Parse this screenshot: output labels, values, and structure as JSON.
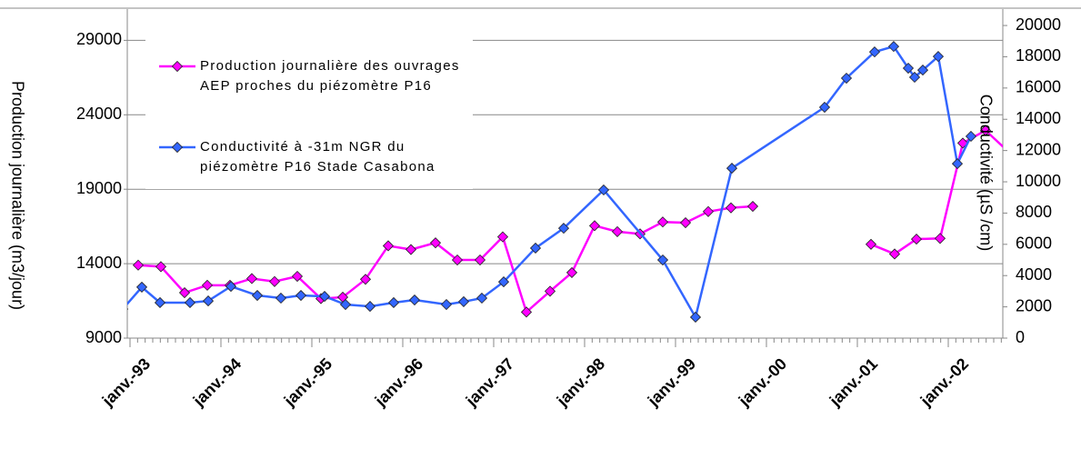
{
  "chart_data": {
    "type": "line",
    "y_label": "Production journalière (m3/jour)",
    "y2_label": "Conductivité (µS /cm)",
    "xlim": [
      1992.97,
      2002.6
    ],
    "xticks": [
      {
        "value": 1993,
        "label": "janv.-93"
      },
      {
        "value": 1994,
        "label": "janv.-94"
      },
      {
        "value": 1995,
        "label": "janv.-95"
      },
      {
        "value": 1996,
        "label": "janv.-96"
      },
      {
        "value": 1997,
        "label": "janv.-97"
      },
      {
        "value": 1998,
        "label": "janv.-98"
      },
      {
        "value": 1999,
        "label": "janv.-99"
      },
      {
        "value": 2000,
        "label": "janv.-00"
      },
      {
        "value": 2001,
        "label": "janv.-01"
      },
      {
        "value": 2002,
        "label": "janv.-02"
      }
    ],
    "ylim": [
      9000,
      31100
    ],
    "yticks": [
      9000,
      14000,
      19000,
      24000,
      29000
    ],
    "y2lim": [
      0,
      21050
    ],
    "y2ticks": [
      0,
      2000,
      4000,
      6000,
      8000,
      10000,
      12000,
      14000,
      16000,
      18000,
      20000
    ],
    "grid": true,
    "legend": "upper left",
    "series": [
      {
        "name": "Production journalière des ouvrages AEP proches du piézomètre P16",
        "color": "#ff00ff",
        "x": [
          1993.09,
          1993.34,
          1993.6,
          1993.85,
          1994.1,
          1994.34,
          1994.59,
          1994.84,
          1995.1,
          1995.34,
          1995.59,
          1995.84,
          1996.09,
          1996.36,
          1996.6,
          1996.85,
          1997.1,
          1997.36,
          1997.62,
          1997.86,
          1998.11,
          1998.36,
          1998.61,
          1998.86,
          1999.11,
          1999.36,
          1999.61,
          1999.85,
          2000.5,
          2001.15,
          2001.41,
          2001.65,
          2001.91,
          2002.16,
          2002.41,
          2002.7
        ],
        "values": [
          13900,
          13800,
          12050,
          12550,
          12550,
          13000,
          12800,
          13150,
          11650,
          11750,
          12950,
          15200,
          14950,
          15400,
          14250,
          14250,
          15800,
          10750,
          12150,
          13400,
          16550,
          16150,
          16000,
          16800,
          16750,
          17500,
          17750,
          17850,
          null,
          15300,
          14650,
          15650,
          15700,
          22100,
          22950,
          21300
        ]
      },
      {
        "name": "Conductivité à -31m NGR du piézomètre P16 Stade Casabona",
        "color": "#3366ff",
        "axis": "y2",
        "x": [
          1992.92,
          1993.13,
          1993.33,
          1993.66,
          1993.86,
          1994.11,
          1994.4,
          1994.66,
          1994.88,
          1995.14,
          1995.37,
          1995.64,
          1995.9,
          1996.13,
          1996.48,
          1996.67,
          1996.87,
          1997.11,
          1997.46,
          1997.77,
          1998.21,
          1998.86,
          1999.22,
          1999.62,
          2000.64,
          2000.88,
          2001.19,
          2001.4,
          2001.56,
          2001.63,
          2001.72,
          2001.89,
          2002.1,
          2002.25
        ],
        "values": [
          1860,
          3260,
          2270,
          2270,
          2380,
          3310,
          2730,
          2560,
          2730,
          2670,
          2150,
          2030,
          2270,
          2440,
          2150,
          2330,
          2560,
          3600,
          5760,
          7030,
          9480,
          5000,
          1340,
          10870,
          14770,
          16630,
          18310,
          18660,
          17270,
          16690,
          17150,
          18020,
          11160,
          12910
        ]
      }
    ]
  }
}
